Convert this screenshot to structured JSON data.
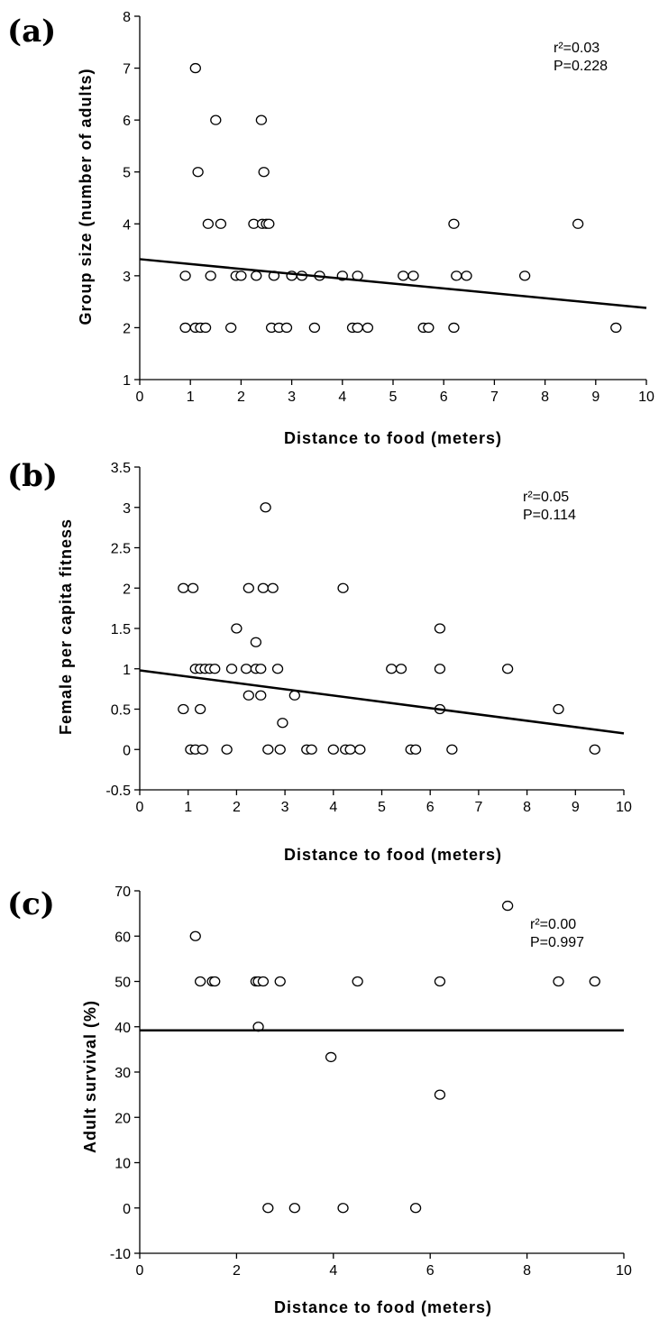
{
  "chart_data": [
    {
      "type": "scatter",
      "panel_label": "(a)",
      "xlabel": "Distance to food (meters)",
      "ylabel": "Group size (number of adults)",
      "xlim": [
        0,
        10
      ],
      "ylim": [
        1,
        8
      ],
      "xticks": [
        0,
        1,
        2,
        3,
        4,
        5,
        6,
        7,
        8,
        9,
        10
      ],
      "yticks": [
        1,
        2,
        3,
        4,
        5,
        6,
        7,
        8
      ],
      "stats": [
        "r²=0.03",
        "P=0.228"
      ],
      "points": [
        {
          "x": 1.1,
          "y": 7
        },
        {
          "x": 1.5,
          "y": 6
        },
        {
          "x": 2.4,
          "y": 6
        },
        {
          "x": 1.15,
          "y": 5
        },
        {
          "x": 2.45,
          "y": 5
        },
        {
          "x": 1.35,
          "y": 4
        },
        {
          "x": 1.6,
          "y": 4
        },
        {
          "x": 2.25,
          "y": 4
        },
        {
          "x": 2.42,
          "y": 4
        },
        {
          "x": 2.5,
          "y": 4
        },
        {
          "x": 2.55,
          "y": 4
        },
        {
          "x": 6.2,
          "y": 4
        },
        {
          "x": 8.65,
          "y": 4
        },
        {
          "x": 0.9,
          "y": 3
        },
        {
          "x": 1.4,
          "y": 3
        },
        {
          "x": 1.9,
          "y": 3
        },
        {
          "x": 2.0,
          "y": 3
        },
        {
          "x": 2.3,
          "y": 3
        },
        {
          "x": 2.65,
          "y": 3
        },
        {
          "x": 3.0,
          "y": 3
        },
        {
          "x": 3.2,
          "y": 3
        },
        {
          "x": 3.55,
          "y": 3
        },
        {
          "x": 4.0,
          "y": 3
        },
        {
          "x": 4.3,
          "y": 3
        },
        {
          "x": 5.2,
          "y": 3
        },
        {
          "x": 5.4,
          "y": 3
        },
        {
          "x": 6.25,
          "y": 3
        },
        {
          "x": 6.45,
          "y": 3
        },
        {
          "x": 7.6,
          "y": 3
        },
        {
          "x": 0.9,
          "y": 2
        },
        {
          "x": 1.1,
          "y": 2
        },
        {
          "x": 1.2,
          "y": 2
        },
        {
          "x": 1.3,
          "y": 2
        },
        {
          "x": 1.8,
          "y": 2
        },
        {
          "x": 2.6,
          "y": 2
        },
        {
          "x": 2.75,
          "y": 2
        },
        {
          "x": 2.9,
          "y": 2
        },
        {
          "x": 3.45,
          "y": 2
        },
        {
          "x": 4.2,
          "y": 2
        },
        {
          "x": 4.3,
          "y": 2
        },
        {
          "x": 4.5,
          "y": 2
        },
        {
          "x": 5.6,
          "y": 2
        },
        {
          "x": 5.7,
          "y": 2
        },
        {
          "x": 6.2,
          "y": 2
        },
        {
          "x": 9.4,
          "y": 2
        }
      ],
      "regression": {
        "x": [
          0,
          10
        ],
        "y": [
          3.32,
          2.38
        ]
      }
    },
    {
      "type": "scatter",
      "panel_label": "(b)",
      "xlabel": "Distance to food (meters)",
      "ylabel": "Female per capita fitness",
      "xlim": [
        0,
        10
      ],
      "ylim": [
        -0.5,
        3.5
      ],
      "xticks": [
        0,
        1,
        2,
        3,
        4,
        5,
        6,
        7,
        8,
        9,
        10
      ],
      "yticks": [
        -0.5,
        0,
        0.5,
        1,
        1.5,
        2,
        2.5,
        3,
        3.5
      ],
      "stats": [
        "r²=0.05",
        "P=0.114"
      ],
      "points": [
        {
          "x": 2.6,
          "y": 3
        },
        {
          "x": 0.9,
          "y": 2
        },
        {
          "x": 1.1,
          "y": 2
        },
        {
          "x": 2.25,
          "y": 2
        },
        {
          "x": 2.55,
          "y": 2
        },
        {
          "x": 2.75,
          "y": 2
        },
        {
          "x": 4.2,
          "y": 2
        },
        {
          "x": 2.0,
          "y": 1.5
        },
        {
          "x": 6.2,
          "y": 1.5
        },
        {
          "x": 2.4,
          "y": 1.33
        },
        {
          "x": 1.15,
          "y": 1
        },
        {
          "x": 1.25,
          "y": 1
        },
        {
          "x": 1.35,
          "y": 1
        },
        {
          "x": 1.45,
          "y": 1
        },
        {
          "x": 1.55,
          "y": 1
        },
        {
          "x": 1.9,
          "y": 1
        },
        {
          "x": 2.2,
          "y": 1
        },
        {
          "x": 2.4,
          "y": 1
        },
        {
          "x": 2.5,
          "y": 1
        },
        {
          "x": 2.85,
          "y": 1
        },
        {
          "x": 5.2,
          "y": 1
        },
        {
          "x": 5.4,
          "y": 1
        },
        {
          "x": 6.2,
          "y": 1
        },
        {
          "x": 7.6,
          "y": 1
        },
        {
          "x": 2.25,
          "y": 0.67
        },
        {
          "x": 2.5,
          "y": 0.67
        },
        {
          "x": 3.2,
          "y": 0.67
        },
        {
          "x": 0.9,
          "y": 0.5
        },
        {
          "x": 1.25,
          "y": 0.5
        },
        {
          "x": 6.2,
          "y": 0.5
        },
        {
          "x": 8.65,
          "y": 0.5
        },
        {
          "x": 2.95,
          "y": 0.33
        },
        {
          "x": 1.05,
          "y": 0
        },
        {
          "x": 1.15,
          "y": 0
        },
        {
          "x": 1.3,
          "y": 0
        },
        {
          "x": 1.8,
          "y": 0
        },
        {
          "x": 2.65,
          "y": 0
        },
        {
          "x": 2.9,
          "y": 0
        },
        {
          "x": 3.45,
          "y": 0
        },
        {
          "x": 3.55,
          "y": 0
        },
        {
          "x": 4.0,
          "y": 0
        },
        {
          "x": 4.25,
          "y": 0
        },
        {
          "x": 4.35,
          "y": 0
        },
        {
          "x": 4.55,
          "y": 0
        },
        {
          "x": 5.6,
          "y": 0
        },
        {
          "x": 5.7,
          "y": 0
        },
        {
          "x": 6.45,
          "y": 0
        },
        {
          "x": 9.4,
          "y": 0
        }
      ],
      "regression": {
        "x": [
          0,
          10
        ],
        "y": [
          0.98,
          0.2
        ]
      }
    },
    {
      "type": "scatter",
      "panel_label": "(c)",
      "xlabel": "Distance to food (meters)",
      "ylabel": "Adult survival (%)",
      "xlim": [
        0,
        10
      ],
      "ylim": [
        -10,
        70
      ],
      "xticks": [
        0,
        2,
        4,
        6,
        8,
        10
      ],
      "yticks": [
        -10,
        0,
        10,
        20,
        30,
        40,
        50,
        60,
        70
      ],
      "stats": [
        "r²=0.00",
        "P=0.997"
      ],
      "points": [
        {
          "x": 7.6,
          "y": 66.7
        },
        {
          "x": 1.15,
          "y": 60
        },
        {
          "x": 1.25,
          "y": 50
        },
        {
          "x": 1.5,
          "y": 50
        },
        {
          "x": 1.55,
          "y": 50
        },
        {
          "x": 2.4,
          "y": 50
        },
        {
          "x": 2.45,
          "y": 50
        },
        {
          "x": 2.55,
          "y": 50
        },
        {
          "x": 2.9,
          "y": 50
        },
        {
          "x": 4.5,
          "y": 50
        },
        {
          "x": 6.2,
          "y": 50
        },
        {
          "x": 8.65,
          "y": 50
        },
        {
          "x": 9.4,
          "y": 50
        },
        {
          "x": 2.45,
          "y": 40
        },
        {
          "x": 3.95,
          "y": 33.3
        },
        {
          "x": 6.2,
          "y": 25
        },
        {
          "x": 2.65,
          "y": 0
        },
        {
          "x": 3.2,
          "y": 0
        },
        {
          "x": 4.2,
          "y": 0
        },
        {
          "x": 5.7,
          "y": 0
        }
      ],
      "regression": {
        "x": [
          0,
          10
        ],
        "y": [
          39.2,
          39.2
        ]
      }
    }
  ]
}
